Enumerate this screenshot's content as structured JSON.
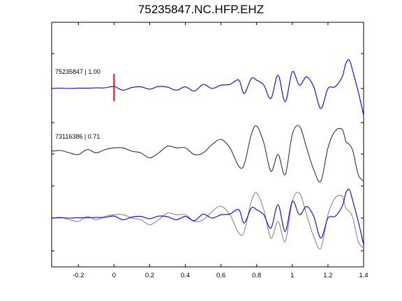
{
  "chart_data": {
    "type": "line",
    "title": "75235847.NC.HFP.EHZ",
    "xlabel": "",
    "ylabel": "",
    "xlim": [
      -0.35,
      1.4
    ],
    "x_ticks": [
      "-0.2",
      "0",
      "0.2",
      "0.4",
      "0.6",
      "0.8",
      "1",
      "1.2",
      "1.4"
    ],
    "x_tick_values": [
      -0.2,
      0,
      0.2,
      0.4,
      0.6,
      0.8,
      1.0,
      1.2,
      1.4
    ],
    "grid": false,
    "pick_time": 0,
    "colors": {
      "primary": "#0000ff",
      "secondary": "#333333",
      "overlay_secondary": "#888888",
      "pick": "#ff0000"
    },
    "traces": [
      {
        "label": "75235847 | 1.00",
        "color": "#0000ff",
        "x": [
          -0.35,
          -0.3,
          -0.25,
          -0.2,
          -0.15,
          -0.1,
          -0.05,
          0.0,
          0.05,
          0.1,
          0.15,
          0.2,
          0.25,
          0.3,
          0.35,
          0.4,
          0.45,
          0.5,
          0.55,
          0.6,
          0.65,
          0.7,
          0.73,
          0.77,
          0.8,
          0.84,
          0.88,
          0.92,
          0.96,
          1.0,
          1.04,
          1.08,
          1.12,
          1.16,
          1.2,
          1.24,
          1.28,
          1.3,
          1.32,
          1.34,
          1.37,
          1.4
        ],
        "y": [
          0,
          0.01,
          0,
          0.01,
          0.01,
          0.02,
          0.02,
          0.06,
          -0.05,
          0.03,
          0.05,
          -0.02,
          0.06,
          0.04,
          -0.05,
          0.05,
          -0.08,
          0.12,
          0.0,
          0.1,
          0.12,
          0.25,
          -0.15,
          0.3,
          0.25,
          0.1,
          -0.3,
          0.4,
          -0.4,
          0.5,
          0.1,
          0.35,
          0.05,
          -0.6,
          0.0,
          0.05,
          0.35,
          0.75,
          0.85,
          0.5,
          -0.1,
          -0.8
        ]
      },
      {
        "label": "73116386 | 0.71",
        "color": "#333333",
        "x": [
          -0.35,
          -0.3,
          -0.25,
          -0.2,
          -0.15,
          -0.1,
          -0.05,
          0.0,
          0.05,
          0.1,
          0.15,
          0.2,
          0.25,
          0.3,
          0.35,
          0.4,
          0.45,
          0.5,
          0.55,
          0.6,
          0.65,
          0.7,
          0.73,
          0.77,
          0.8,
          0.84,
          0.88,
          0.92,
          0.96,
          1.0,
          1.04,
          1.08,
          1.12,
          1.16,
          1.2,
          1.24,
          1.28,
          1.3,
          1.32,
          1.34,
          1.37,
          1.4
        ],
        "y": [
          0,
          0.02,
          -0.05,
          -0.1,
          0.05,
          -0.05,
          0.05,
          0.1,
          0.1,
          0.0,
          -0.05,
          -0.2,
          -0.05,
          0.15,
          0.1,
          0.1,
          -0.1,
          -0.05,
          0.2,
          0.35,
          0.1,
          -0.45,
          -0.4,
          0.5,
          0.75,
          0.25,
          -0.6,
          -0.1,
          -0.7,
          0.5,
          0.75,
          0.1,
          -0.55,
          -0.9,
          0.1,
          0.6,
          0.65,
          0.3,
          0.2,
          0.0,
          -0.7,
          -0.9
        ]
      }
    ],
    "overlay": "traces shown superimposed in bottom panel"
  }
}
